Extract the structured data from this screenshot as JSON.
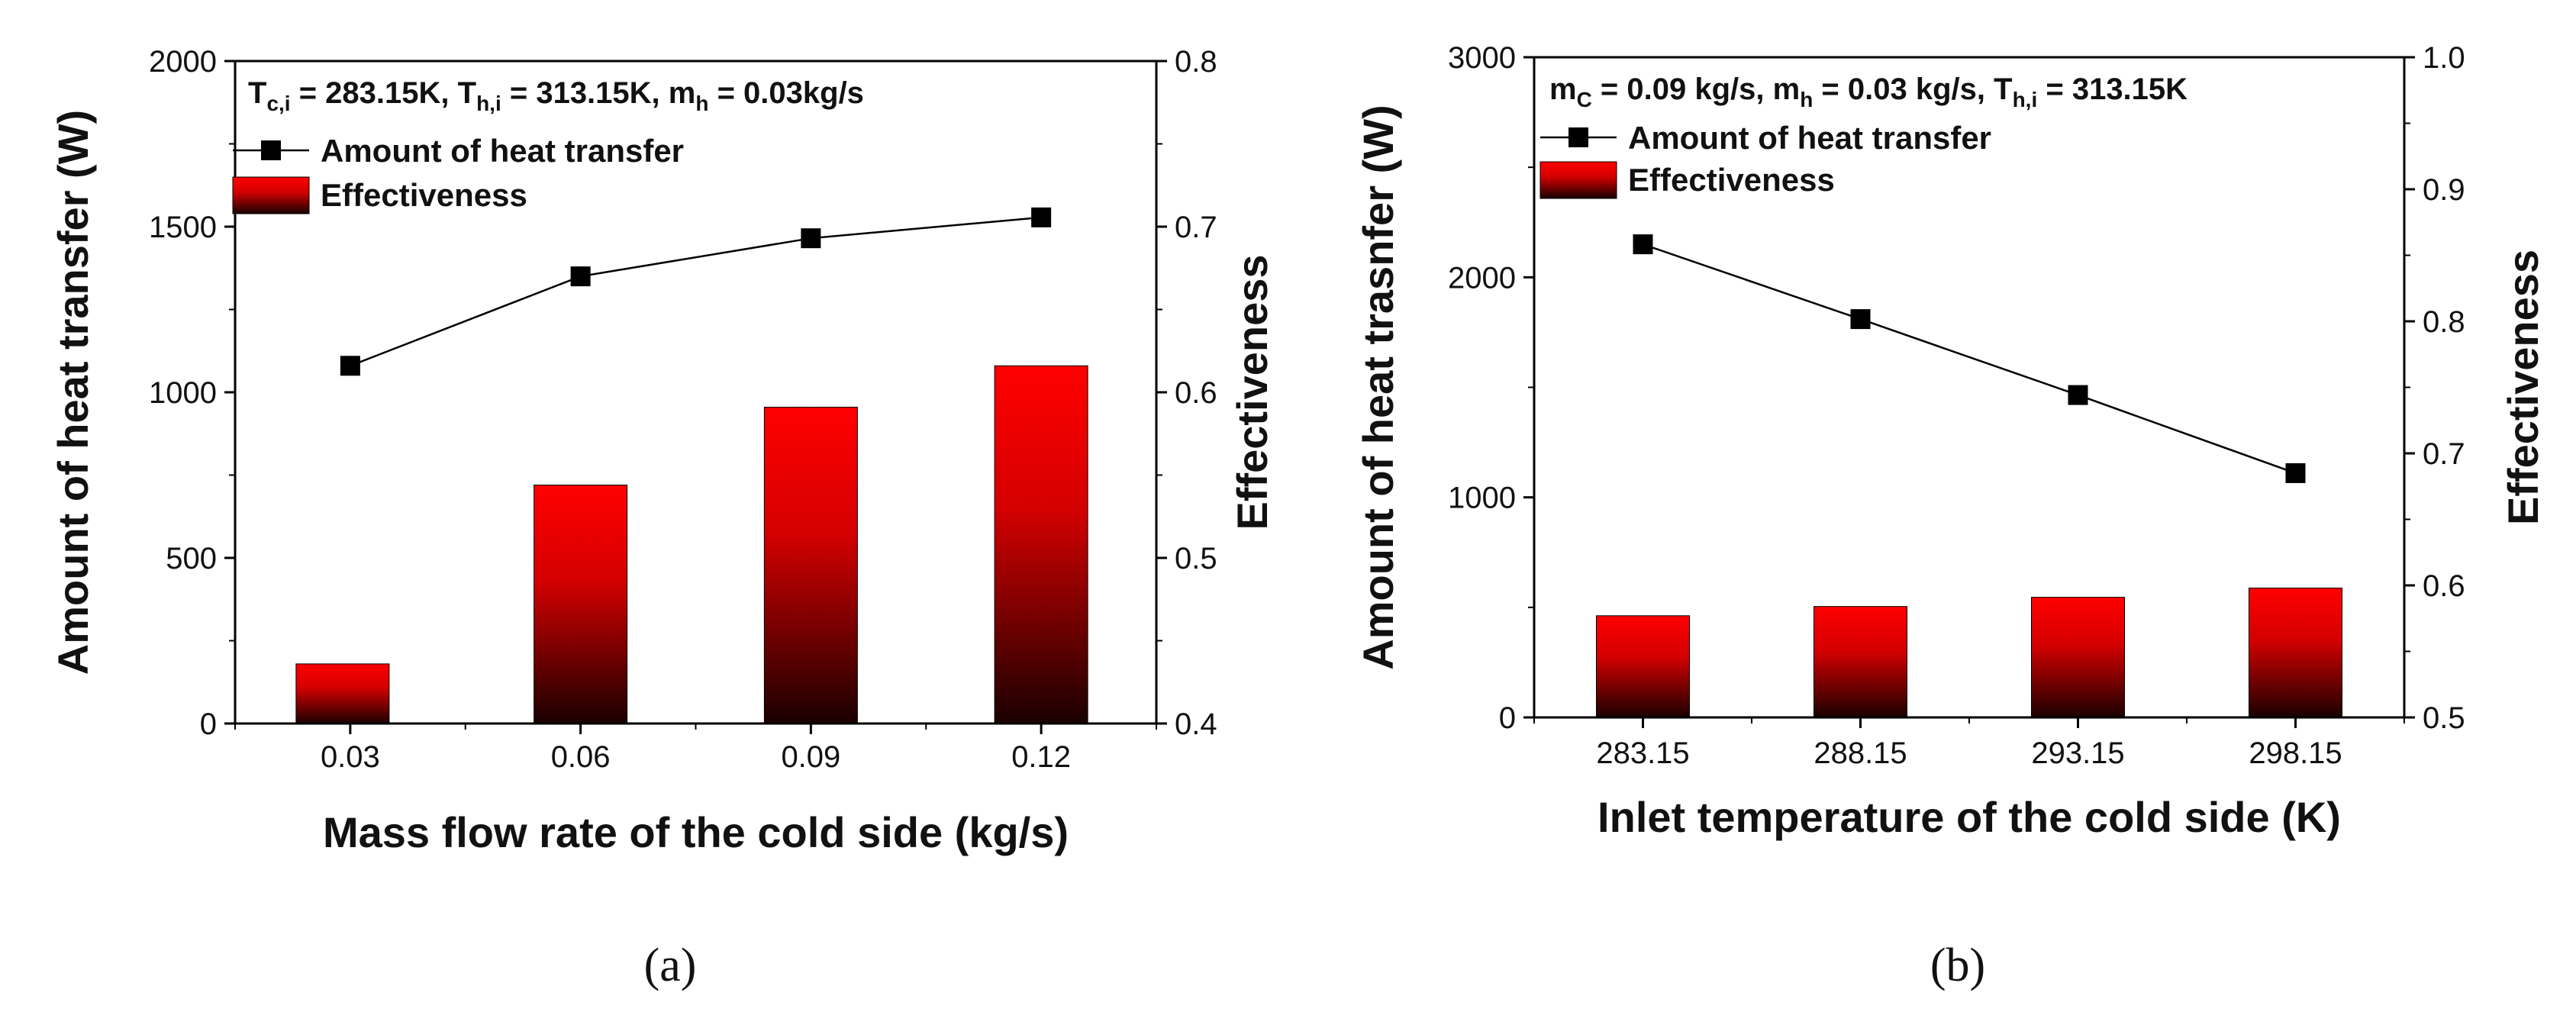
{
  "chart_data": [
    {
      "type": "bar",
      "panel_label": "(a)",
      "conditions_parts": [
        "T",
        "c,i",
        " = 283.15K, T",
        "h,i",
        " = 313.15K,  m",
        "h",
        " = 0.03kg/s"
      ],
      "categories": [
        "0.03",
        "0.06",
        "0.09",
        "0.12"
      ],
      "xlabel": "Mass flow rate of the cold side (kg/s)",
      "ylabel": "Amount of heat transfer (W)",
      "y2label": "Effectiveness",
      "ylim": [
        0,
        2000
      ],
      "yticks": [
        "0",
        "500",
        "1000",
        "1500",
        "2000"
      ],
      "y2lim": [
        0.4,
        0.8
      ],
      "y2ticks": [
        "0.4",
        "0.5",
        "0.6",
        "0.7",
        "0.8"
      ],
      "series": [
        {
          "name": "Amount of heat transfer",
          "kind": "line",
          "axis": "left",
          "values": [
            1080,
            1350,
            1465,
            1528
          ]
        },
        {
          "name": "Effectiveness",
          "kind": "bar",
          "axis": "right",
          "values": [
            0.436,
            0.544,
            0.591,
            0.616
          ]
        }
      ],
      "colors": {
        "bar_top": "#ff0000",
        "bar_bottom": "#1a0000",
        "line": "#000000"
      }
    },
    {
      "type": "bar",
      "panel_label": "(b)",
      "conditions_parts": [
        "m",
        "C",
        " = 0.09 kg/s,   m",
        "h",
        " = 0.03 kg/s, T",
        "h,i",
        " = 313.15K"
      ],
      "categories": [
        "283.15",
        "288.15",
        "293.15",
        "298.15"
      ],
      "xlabel": "Inlet temperature of the cold side (K)",
      "ylabel": "Amount of heat trasnfer (W)",
      "y2label": "Effectiveness",
      "ylim": [
        0,
        3000
      ],
      "yticks": [
        "0",
        "1000",
        "2000",
        "3000"
      ],
      "y2lim": [
        0.5,
        1.0
      ],
      "y2ticks": [
        "0.5",
        "0.6",
        "0.7",
        "0.8",
        "0.9",
        "1.0"
      ],
      "series": [
        {
          "name": "Amount of heat transfer",
          "kind": "line",
          "axis": "left",
          "values": [
            2150,
            1810,
            1465,
            1110
          ]
        },
        {
          "name": "Effectiveness",
          "kind": "bar",
          "axis": "right",
          "values": [
            0.577,
            0.584,
            0.591,
            0.598
          ]
        }
      ],
      "colors": {
        "bar_top": "#ff0000",
        "bar_bottom": "#1a0000",
        "line": "#000000"
      }
    }
  ]
}
